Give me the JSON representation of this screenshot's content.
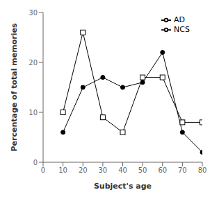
{
  "chart_data": {
    "type": "line",
    "x": [
      10,
      20,
      30,
      40,
      50,
      60,
      70,
      80
    ],
    "series": [
      {
        "name": "NCS",
        "color": "#000000",
        "marker": "circle",
        "values": [
          6,
          15,
          17,
          15,
          16,
          22,
          6,
          2
        ]
      },
      {
        "name": "AD",
        "color": "#000000",
        "marker": "square",
        "values": [
          10,
          26,
          9,
          6,
          17,
          17,
          8,
          8
        ]
      }
    ],
    "xlabel": "Subject's age",
    "ylabel": "Percentage of total memories",
    "xlim": [
      0,
      80
    ],
    "ylim": [
      0,
      30
    ],
    "xticks": [
      0,
      10,
      20,
      30,
      40,
      50,
      60,
      70,
      80
    ],
    "yticks": [
      0,
      10,
      20,
      30
    ],
    "legend": "upper right",
    "grid": false
  }
}
